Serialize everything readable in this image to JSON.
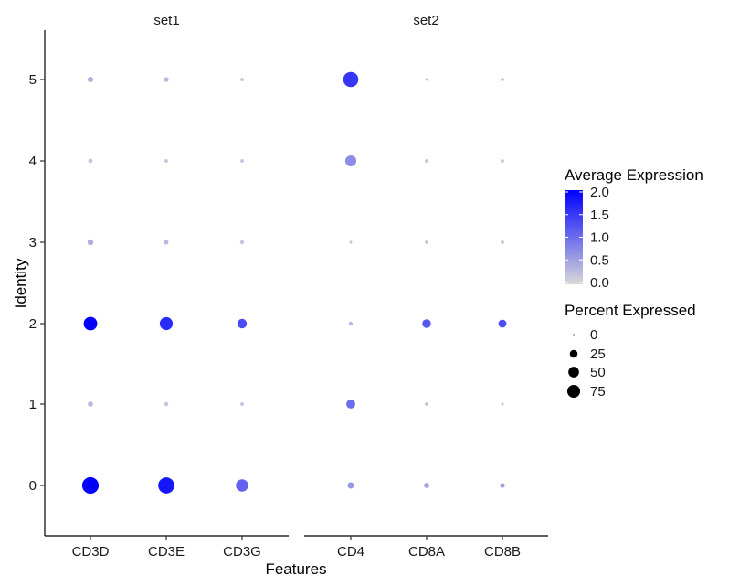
{
  "chart_data": {
    "type": "dotplot",
    "xlabel": "Features",
    "ylabel": "Identity",
    "identities": [
      "0",
      "1",
      "2",
      "3",
      "4",
      "5"
    ],
    "facets": [
      {
        "title": "set1",
        "features": [
          "CD3D",
          "CD3E",
          "CD3G"
        ]
      },
      {
        "title": "set2",
        "features": [
          "CD4",
          "CD8A",
          "CD8B"
        ]
      }
    ],
    "points": [
      {
        "feature": "CD3D",
        "identity": "0",
        "avg_exp": 2.0,
        "pct": 85
      },
      {
        "feature": "CD3E",
        "identity": "0",
        "avg_exp": 1.8,
        "pct": 80
      },
      {
        "feature": "CD3G",
        "identity": "0",
        "avg_exp": 1.1,
        "pct": 45
      },
      {
        "feature": "CD4",
        "identity": "0",
        "avg_exp": 0.6,
        "pct": 10
      },
      {
        "feature": "CD8A",
        "identity": "0",
        "avg_exp": 0.5,
        "pct": 6
      },
      {
        "feature": "CD8B",
        "identity": "0",
        "avg_exp": 0.5,
        "pct": 5
      },
      {
        "feature": "CD3D",
        "identity": "1",
        "avg_exp": 0.3,
        "pct": 6
      },
      {
        "feature": "CD3E",
        "identity": "1",
        "avg_exp": 0.2,
        "pct": 3
      },
      {
        "feature": "CD3G",
        "identity": "1",
        "avg_exp": 0.2,
        "pct": 2
      },
      {
        "feature": "CD4",
        "identity": "1",
        "avg_exp": 1.0,
        "pct": 22
      },
      {
        "feature": "CD8A",
        "identity": "1",
        "avg_exp": 0.2,
        "pct": 2
      },
      {
        "feature": "CD8B",
        "identity": "1",
        "avg_exp": 0.2,
        "pct": 1
      },
      {
        "feature": "CD3D",
        "identity": "2",
        "avg_exp": 2.1,
        "pct": 55
      },
      {
        "feature": "CD3E",
        "identity": "2",
        "avg_exp": 1.6,
        "pct": 50
      },
      {
        "feature": "CD3G",
        "identity": "2",
        "avg_exp": 1.3,
        "pct": 25
      },
      {
        "feature": "CD4",
        "identity": "2",
        "avg_exp": 0.3,
        "pct": 3
      },
      {
        "feature": "CD8A",
        "identity": "2",
        "avg_exp": 1.2,
        "pct": 20
      },
      {
        "feature": "CD8B",
        "identity": "2",
        "avg_exp": 1.3,
        "pct": 17
      },
      {
        "feature": "CD3D",
        "identity": "3",
        "avg_exp": 0.4,
        "pct": 8
      },
      {
        "feature": "CD3E",
        "identity": "3",
        "avg_exp": 0.3,
        "pct": 4
      },
      {
        "feature": "CD3G",
        "identity": "3",
        "avg_exp": 0.2,
        "pct": 3
      },
      {
        "feature": "CD4",
        "identity": "3",
        "avg_exp": 0.2,
        "pct": 1
      },
      {
        "feature": "CD8A",
        "identity": "3",
        "avg_exp": 0.2,
        "pct": 2
      },
      {
        "feature": "CD8B",
        "identity": "3",
        "avg_exp": 0.2,
        "pct": 2
      },
      {
        "feature": "CD3D",
        "identity": "4",
        "avg_exp": 0.2,
        "pct": 4
      },
      {
        "feature": "CD3E",
        "identity": "4",
        "avg_exp": 0.2,
        "pct": 2
      },
      {
        "feature": "CD3G",
        "identity": "4",
        "avg_exp": 0.2,
        "pct": 2
      },
      {
        "feature": "CD4",
        "identity": "4",
        "avg_exp": 0.7,
        "pct": 35
      },
      {
        "feature": "CD8A",
        "identity": "4",
        "avg_exp": 0.2,
        "pct": 2
      },
      {
        "feature": "CD8B",
        "identity": "4",
        "avg_exp": 0.2,
        "pct": 2
      },
      {
        "feature": "CD3D",
        "identity": "5",
        "avg_exp": 0.4,
        "pct": 7
      },
      {
        "feature": "CD3E",
        "identity": "5",
        "avg_exp": 0.3,
        "pct": 5
      },
      {
        "feature": "CD3G",
        "identity": "5",
        "avg_exp": 0.2,
        "pct": 2
      },
      {
        "feature": "CD4",
        "identity": "5",
        "avg_exp": 1.5,
        "pct": 70
      },
      {
        "feature": "CD8A",
        "identity": "5",
        "avg_exp": 0.2,
        "pct": 1
      },
      {
        "feature": "CD8B",
        "identity": "5",
        "avg_exp": 0.2,
        "pct": 2
      }
    ],
    "color_legend": {
      "title": "Average Expression",
      "low_color": "#d9d9d9",
      "high_color": "#0000ff",
      "range": [
        0.0,
        2.0
      ],
      "ticks": [
        "0.0",
        "0.5",
        "1.0",
        "1.5",
        "2.0"
      ]
    },
    "size_legend": {
      "title": "Percent Expressed",
      "values": [
        0,
        25,
        50,
        75
      ],
      "labels": [
        "0",
        "25",
        "50",
        "75"
      ]
    },
    "grid": false,
    "legend_position": "right"
  }
}
